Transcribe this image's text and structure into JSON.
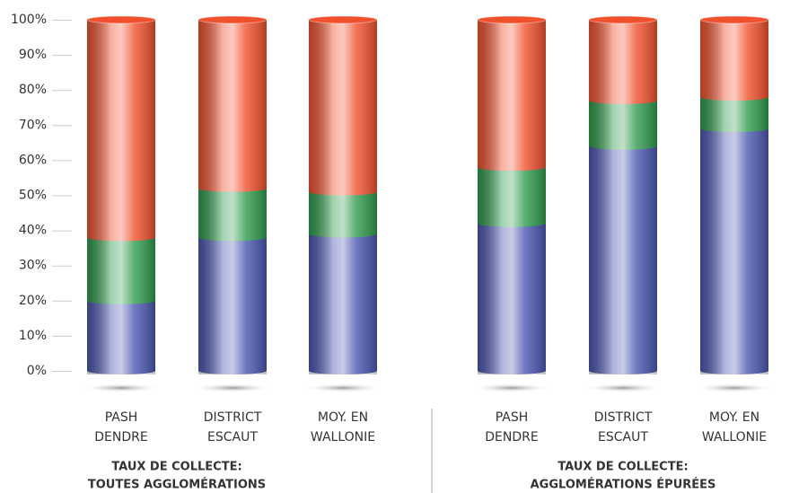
{
  "chart_data": {
    "type": "stacked-bar",
    "categories": [
      [
        "PASH",
        "DENDRE"
      ],
      [
        "DISTRICT",
        "ESCAUT"
      ],
      [
        "MOY. EN",
        "WALLONIE"
      ],
      [
        "PASH",
        "DENDRE"
      ],
      [
        "DISTRICT",
        "ESCAUT"
      ],
      [
        "MOY. EN",
        "WALLONIE"
      ]
    ],
    "groups": [
      [
        "TAUX DE COLLECTE:",
        "TOUTES AGGLOMÉRATIONS"
      ],
      [
        "TAUX DE COLLECTE:",
        "AGGLOMÉRATIONS ÉPURÉES"
      ]
    ],
    "series": [
      {
        "color": "#4a56b0",
        "values": [
          20,
          38,
          39,
          42,
          64,
          69
        ]
      },
      {
        "color": "#2e9a4c",
        "values": [
          18,
          14,
          12,
          16,
          13,
          9
        ]
      },
      {
        "color": "#f0502c",
        "values": [
          62,
          48,
          49,
          42,
          23,
          22
        ]
      }
    ],
    "ylim": [
      0,
      100
    ],
    "yticks": [
      {
        "value": 0,
        "label": "0%"
      },
      {
        "value": 10,
        "label": "10%"
      },
      {
        "value": 20,
        "label": "20%"
      },
      {
        "value": 30,
        "label": "30%"
      },
      {
        "value": 40,
        "label": "40%"
      },
      {
        "value": 50,
        "label": "50%"
      },
      {
        "value": 60,
        "label": "60%"
      },
      {
        "value": 70,
        "label": "70%"
      },
      {
        "value": 80,
        "label": "80%"
      },
      {
        "value": 90,
        "label": "90%"
      },
      {
        "value": 100,
        "label": "100%"
      }
    ]
  }
}
